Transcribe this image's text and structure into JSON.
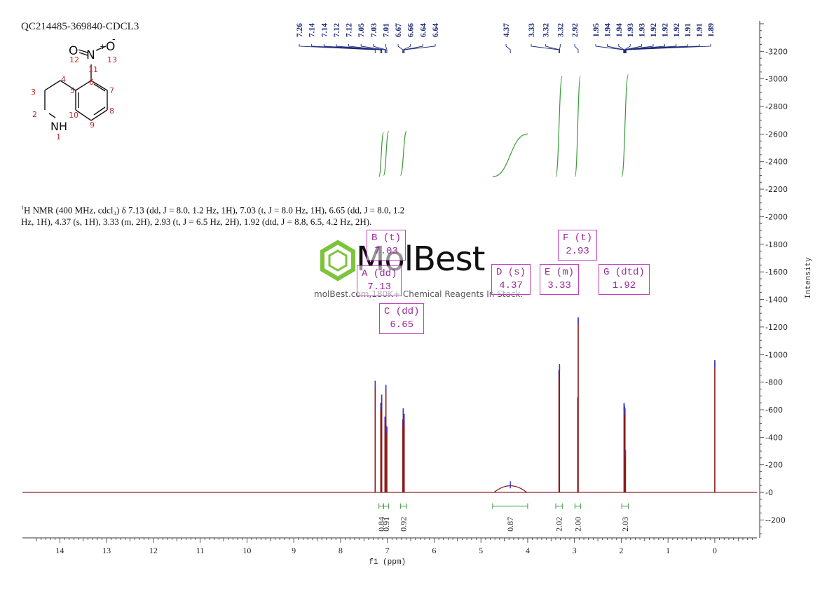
{
  "sample_id": "QC214485-369840-CDCL3",
  "molecule": {
    "atoms": [
      {
        "label": "O",
        "num": "12"
      },
      {
        "label": "N",
        "num": "11"
      },
      {
        "label": "O",
        "num": "13"
      },
      {
        "label": "NH",
        "num": "1"
      }
    ],
    "numbers": [
      "1",
      "2",
      "3",
      "4",
      "5",
      "6",
      "7",
      "8",
      "9",
      "10",
      "11",
      "12",
      "13"
    ],
    "charge_plus": "+",
    "charge_minus": "-"
  },
  "nmr_description": {
    "nucleus_sup": "1",
    "text": "H NMR (400 MHz, cdcl₃) δ 7.13 (dd, J = 8.0, 1.2 Hz, 1H), 7.03 (t, J = 8.0 Hz, 1H), 6.65 (dd, J = 8.0, 1.2 Hz, 1H), 4.37 (s, 1H), 3.33 (m, 2H), 2.93 (t, J = 6.5 Hz, 2H), 1.92 (dtd, J = 8.8, 6.5, 4.2 Hz, 2H)."
  },
  "watermark": {
    "title": "MolBest",
    "subtitle": "molBest.com,180K+ Chemical Reagents In Stock."
  },
  "peak_boxes": [
    {
      "id": "B",
      "label": "B (t)",
      "shift": "7.03"
    },
    {
      "id": "A",
      "label": "A (dd)",
      "shift": "7.13"
    },
    {
      "id": "C",
      "label": "C (dd)",
      "shift": "6.65"
    },
    {
      "id": "D",
      "label": "D (s)",
      "shift": "4.37"
    },
    {
      "id": "E",
      "label": "E (m)",
      "shift": "3.33"
    },
    {
      "id": "F",
      "label": "F (t)",
      "shift": "2.93"
    },
    {
      "id": "G",
      "label": "G (dtd)",
      "shift": "1.92"
    }
  ],
  "chart_data": {
    "type": "line",
    "xlabel": "f1 (ppm)",
    "ylabel": "Intensity",
    "xlim": [
      14.8,
      -0.9
    ],
    "ylim": [
      -330,
      3420
    ],
    "x_ticks": [
      14,
      13,
      12,
      11,
      10,
      9,
      8,
      7,
      6,
      5,
      4,
      3,
      2,
      1,
      0
    ],
    "y_ticks": [
      -200,
      0,
      200,
      400,
      600,
      800,
      1000,
      1200,
      1400,
      1600,
      1800,
      2000,
      2200,
      2400,
      2600,
      2800,
      3000,
      3200
    ],
    "spectrum_peaks": [
      {
        "x": 7.26,
        "y": 800
      },
      {
        "x": 7.14,
        "y": 640
      },
      {
        "x": 7.12,
        "y": 700
      },
      {
        "x": 7.05,
        "y": 540
      },
      {
        "x": 7.03,
        "y": 770
      },
      {
        "x": 7.01,
        "y": 470
      },
      {
        "x": 6.67,
        "y": 520
      },
      {
        "x": 6.66,
        "y": 600
      },
      {
        "x": 6.64,
        "y": 560
      },
      {
        "x": 3.33,
        "y": 880
      },
      {
        "x": 3.32,
        "y": 920
      },
      {
        "x": 2.93,
        "y": 680
      },
      {
        "x": 2.92,
        "y": 1260
      },
      {
        "x": 1.94,
        "y": 640
      },
      {
        "x": 1.93,
        "y": 620
      },
      {
        "x": 1.92,
        "y": 600
      },
      {
        "x": 1.91,
        "y": 300
      },
      {
        "x": 0,
        "y": 950
      }
    ],
    "broad_peak": {
      "x": 4.37,
      "y": 60
    },
    "peak_labels": [
      "7.26",
      "7.14",
      "7.14",
      "7.12",
      "7.12",
      "7.05",
      "7.03",
      "7.01",
      "6.67",
      "6.66",
      "6.64",
      "6.64",
      "4.37",
      "3.33",
      "3.32",
      "3.32",
      "2.92",
      "1.95",
      "1.94",
      "1.94",
      "1.93",
      "1.93",
      "1.92",
      "1.92",
      "1.92",
      "1.91",
      "1.91",
      "1.89"
    ],
    "integrals": [
      {
        "from": 7.18,
        "to": 7.08,
        "value": "0.84",
        "ymin": 2290,
        "ymax": 2610
      },
      {
        "from": 7.08,
        "to": 6.97,
        "value": "0.91",
        "ymin": 2300,
        "ymax": 2620
      },
      {
        "from": 6.72,
        "to": 6.59,
        "value": "0.92",
        "ymin": 2300,
        "ymax": 2620
      },
      {
        "from": 4.75,
        "to": 4.0,
        "value": "0.87",
        "ymin": 2290,
        "ymax": 2600
      },
      {
        "from": 3.4,
        "to": 3.26,
        "value": "2.02",
        "ymin": 2290,
        "ymax": 3020
      },
      {
        "from": 2.99,
        "to": 2.87,
        "value": "2.00",
        "ymin": 2290,
        "ymax": 3020
      },
      {
        "from": 1.99,
        "to": 1.85,
        "value": "2.03",
        "ymin": 2290,
        "ymax": 3030
      }
    ]
  }
}
